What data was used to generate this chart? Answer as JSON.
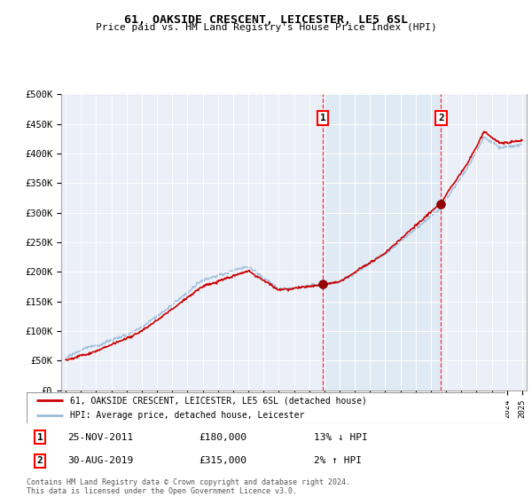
{
  "title": "61, OAKSIDE CRESCENT, LEICESTER, LE5 6SL",
  "subtitle": "Price paid vs. HM Land Registry's House Price Index (HPI)",
  "x_start_year": 1995,
  "x_end_year": 2025,
  "y_min": 0,
  "y_max": 500000,
  "y_ticks": [
    0,
    50000,
    100000,
    150000,
    200000,
    250000,
    300000,
    350000,
    400000,
    450000,
    500000
  ],
  "y_tick_labels": [
    "£0",
    "£50K",
    "£100K",
    "£150K",
    "£200K",
    "£250K",
    "£300K",
    "£350K",
    "£400K",
    "£450K",
    "£500K"
  ],
  "hpi_color": "#9bbcd8",
  "hpi_fill_color": "#dce8f5",
  "price_color": "#cc0000",
  "sale1_year": 2011.9,
  "sale1_price": 180000,
  "sale1_label": "1",
  "sale1_date": "25-NOV-2011",
  "sale1_hpi_note": "13% ↓ HPI",
  "sale2_year": 2019.67,
  "sale2_price": 315000,
  "sale2_label": "2",
  "sale2_date": "30-AUG-2019",
  "sale2_hpi_note": "2% ↑ HPI",
  "legend_line1": "61, OAKSIDE CRESCENT, LEICESTER, LE5 6SL (detached house)",
  "legend_line2": "HPI: Average price, detached house, Leicester",
  "footer": "Contains HM Land Registry data © Crown copyright and database right 2024.\nThis data is licensed under the Open Government Licence v3.0."
}
